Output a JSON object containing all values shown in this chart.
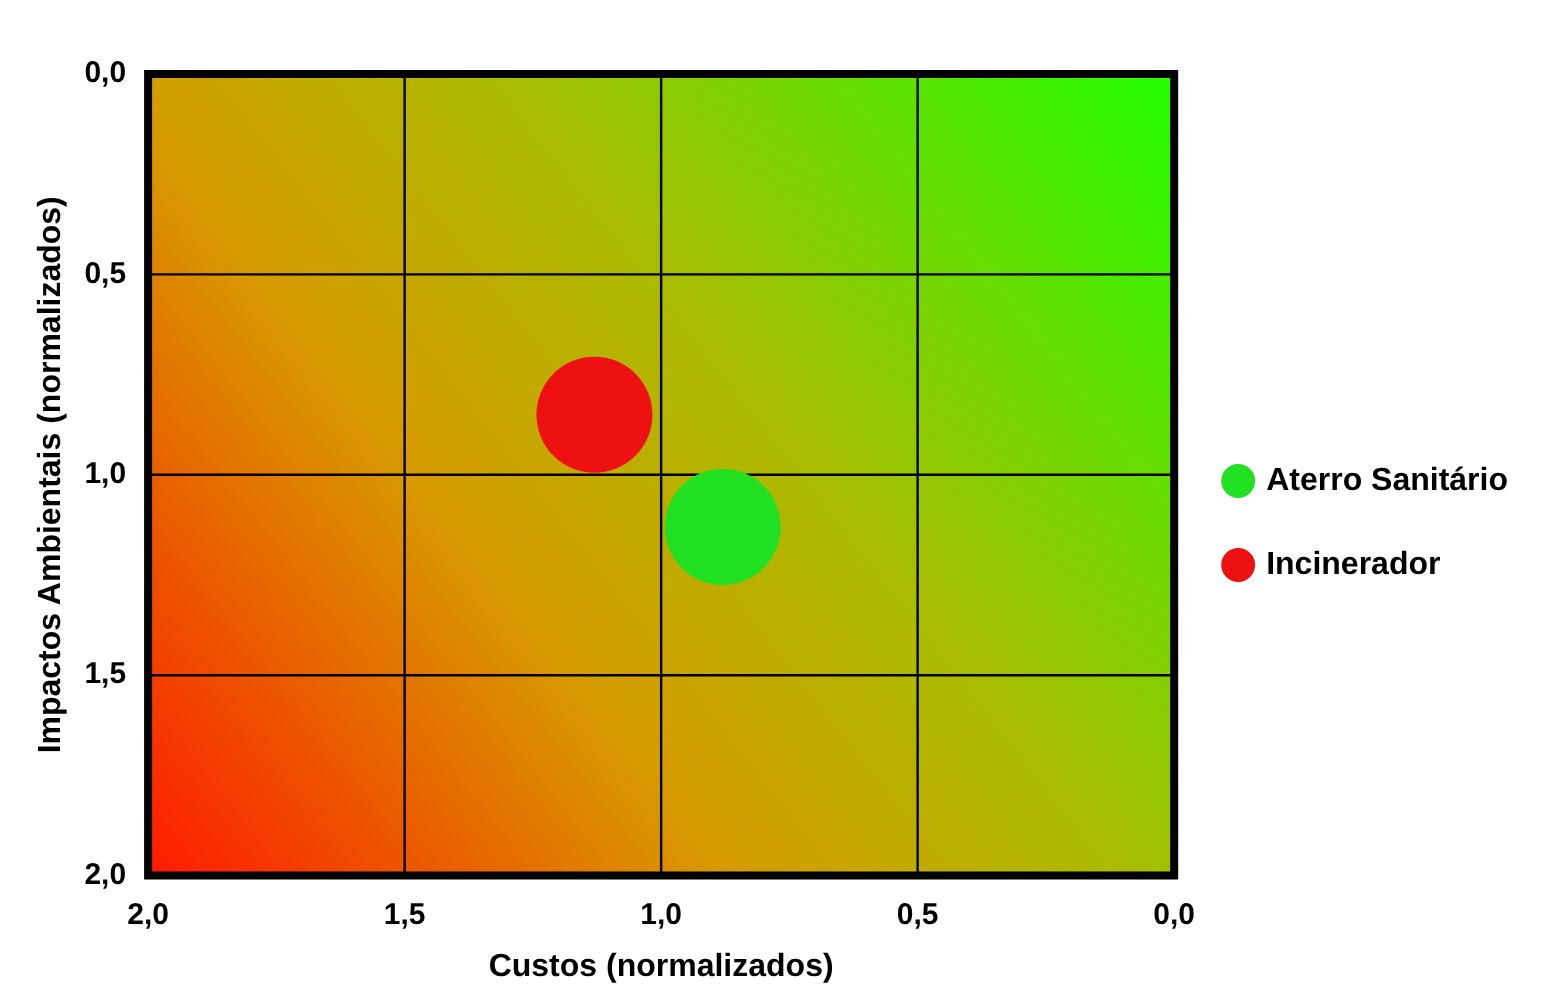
{
  "chart_data": {
    "type": "bubble",
    "xlabel": "Custos (normalizados)",
    "ylabel": "Impactos Ambientais (normalizados)",
    "xlim": [
      2,
      0
    ],
    "ylim": [
      2,
      0
    ],
    "xticks": [
      {
        "value": 2,
        "label": "2,0"
      },
      {
        "value": 1.5,
        "label": "1,5"
      },
      {
        "value": 1,
        "label": "1,0"
      },
      {
        "value": 0.5,
        "label": "0,5"
      },
      {
        "value": 0,
        "label": "0,0"
      }
    ],
    "yticks": [
      {
        "value": 2,
        "label": "2,0"
      },
      {
        "value": 1.5,
        "label": "1,5"
      },
      {
        "value": 1,
        "label": "1,0"
      },
      {
        "value": 0.5,
        "label": "0,5"
      },
      {
        "value": 0,
        "label": "0,0"
      }
    ],
    "series": [
      {
        "name": "Aterro Sanitário",
        "color": "#22e022",
        "x": [
          0.88
        ],
        "values": [
          1.13
        ],
        "sizes": [
          1
        ]
      },
      {
        "name": "Incinerador",
        "color": "#ee1111",
        "x": [
          1.13
        ],
        "values": [
          0.85
        ],
        "sizes": [
          1
        ]
      }
    ],
    "grid": true,
    "legend": "right",
    "marker": "circle"
  }
}
